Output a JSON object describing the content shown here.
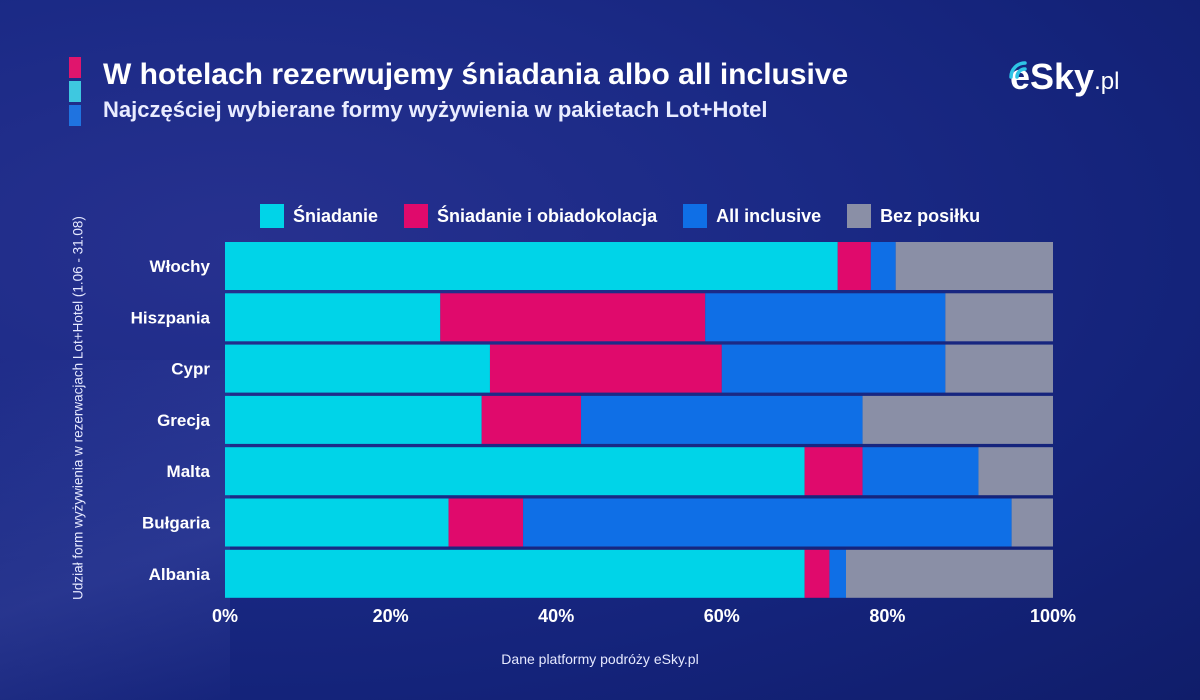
{
  "header": {
    "title": "W hotelach rezerwujemy śniadania albo all inclusive",
    "subtitle": "Najczęściej wybierane formy wyżywienia w pakietach Lot+Hotel"
  },
  "logo": {
    "main": "eSky",
    "suffix": ".pl"
  },
  "footer": {
    "source": "Dane platformy podróży eSky.pl"
  },
  "chart_data": {
    "type": "bar",
    "orientation": "horizontal",
    "stacked": true,
    "normalized": true,
    "title": "W hotelach rezerwujemy śniadania albo all inclusive",
    "subtitle": "Najczęściej wybierane formy wyżywienia w pakietach Lot+Hotel",
    "ylabel": "Udział form wyżywienia w rezerwacjach Lot+Hotel (1.06 - 31.08)",
    "xlabel": "",
    "categories": [
      "Włochy",
      "Hiszpania",
      "Cypr",
      "Grecja",
      "Malta",
      "Bułgaria",
      "Albania"
    ],
    "series": [
      {
        "name": "Śniadanie",
        "color": "#00d4e8",
        "values": [
          74,
          26,
          32,
          31,
          70,
          27,
          70
        ]
      },
      {
        "name": "Śniadanie i obiadokolacja",
        "color": "#e00a6c",
        "values": [
          4,
          32,
          28,
          12,
          7,
          9,
          3
        ]
      },
      {
        "name": "All inclusive",
        "color": "#0f6fe6",
        "values": [
          3,
          29,
          27,
          34,
          14,
          59,
          2
        ]
      },
      {
        "name": "Bez posiłku",
        "color": "#8a8fa6",
        "values": [
          19,
          13,
          13,
          23,
          9,
          5,
          25
        ]
      }
    ],
    "xlim": [
      0,
      100
    ],
    "xticks": [
      "0%",
      "20%",
      "40%",
      "60%",
      "80%",
      "100%"
    ],
    "legend_position": "top",
    "grid": false
  }
}
